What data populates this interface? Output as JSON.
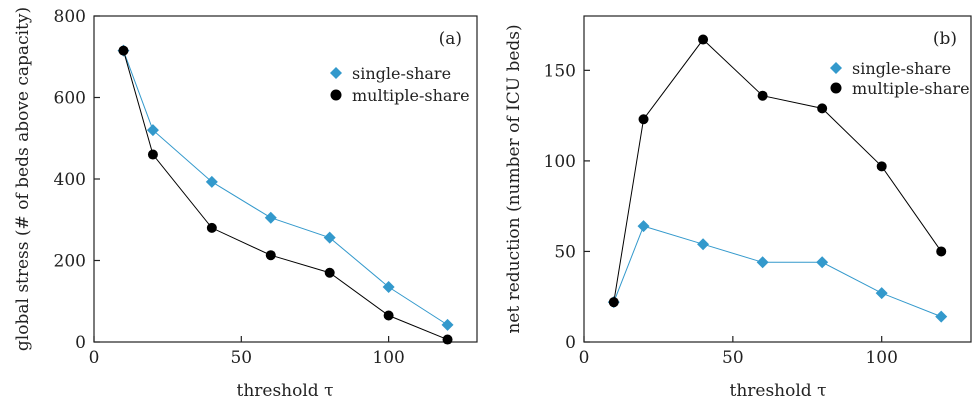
{
  "colors": {
    "single": "#3399CC",
    "multiple": "#000000",
    "axis": "#222222"
  },
  "chart_data": [
    {
      "type": "line",
      "panel_label": "(a)",
      "xlabel": "threshold τ",
      "ylabel": "global stress (# of beds above capacity)",
      "xlim": [
        0,
        130
      ],
      "ylim": [
        0,
        800
      ],
      "xticks": [
        0,
        50,
        100
      ],
      "yticks": [
        0,
        200,
        400,
        600,
        800
      ],
      "legend_position": "top-right",
      "x": [
        10,
        20,
        40,
        60,
        80,
        100,
        120
      ],
      "series": [
        {
          "name": "single-share",
          "marker": "diamond",
          "values": [
            715,
            520,
            393,
            305,
            256,
            135,
            42
          ]
        },
        {
          "name": "multiple-share",
          "marker": "circle",
          "values": [
            715,
            460,
            280,
            213,
            170,
            65,
            6
          ]
        }
      ]
    },
    {
      "type": "line",
      "panel_label": "(b)",
      "xlabel": "threshold τ",
      "ylabel": "net reduction (number of ICU beds)",
      "xlim": [
        0,
        130
      ],
      "ylim": [
        0,
        180
      ],
      "xticks": [
        0,
        50,
        100
      ],
      "yticks": [
        0,
        50,
        100,
        150
      ],
      "legend_position": "top-right",
      "x": [
        10,
        20,
        40,
        60,
        80,
        100,
        120
      ],
      "series": [
        {
          "name": "single-share",
          "marker": "diamond",
          "values": [
            22,
            64,
            54,
            44,
            44,
            27,
            14
          ]
        },
        {
          "name": "multiple-share",
          "marker": "circle",
          "values": [
            22,
            123,
            167,
            136,
            129,
            97,
            50
          ]
        }
      ]
    }
  ]
}
